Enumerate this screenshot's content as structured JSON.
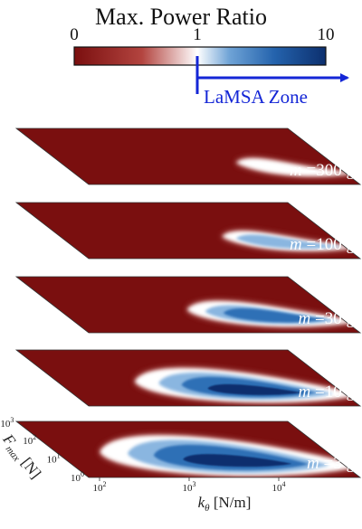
{
  "title": "Max. Power Ratio",
  "colorbar": {
    "ticks": [
      "0",
      "1",
      "10"
    ],
    "colors": {
      "low": "#7a0f0f",
      "mid": "#ffffff",
      "high": "#0c2f6e"
    },
    "zone_label": "LaMSA Zone",
    "zone_color": "#1426d6"
  },
  "chart_data": {
    "type": "heatmap",
    "title": "Max. Power Ratio",
    "xlabel": "kθ [N/m]",
    "ylabel": "Fmax [N]",
    "x_ticks": [
      "10^2",
      "10^3",
      "10^4"
    ],
    "y_ticks": [
      "10^0",
      "10^1",
      "10^2",
      "10^3"
    ],
    "x_scale": "log",
    "y_scale": "log",
    "color_scale": {
      "min": 0,
      "threshold": 1,
      "max": 10
    },
    "panels": [
      {
        "mass_value": "300",
        "mass_unit": "g",
        "max_ratio_estimate": 1.2
      },
      {
        "mass_value": "100",
        "mass_unit": "g",
        "max_ratio_estimate": 2
      },
      {
        "mass_value": "30",
        "mass_unit": "g",
        "max_ratio_estimate": 4
      },
      {
        "mass_value": "10",
        "mass_unit": "g",
        "max_ratio_estimate": 7
      },
      {
        "mass_value": "3",
        "mass_unit": "g",
        "max_ratio_estimate": 9
      }
    ]
  },
  "axes_text": {
    "x_tick_bases": [
      "10",
      "10",
      "10"
    ],
    "x_tick_exps": [
      "2",
      "3",
      "4"
    ],
    "y_tick_bases": [
      "10",
      "10",
      "10",
      "10"
    ],
    "y_tick_exps": [
      "0",
      "1",
      "2",
      "3"
    ],
    "x_label_main": "k",
    "x_label_sub": "θ",
    "x_label_unit": " [N/m]",
    "y_label_main": "F",
    "y_label_sub": "max",
    "y_label_unit": " [N]"
  },
  "mass_symbol": "m"
}
